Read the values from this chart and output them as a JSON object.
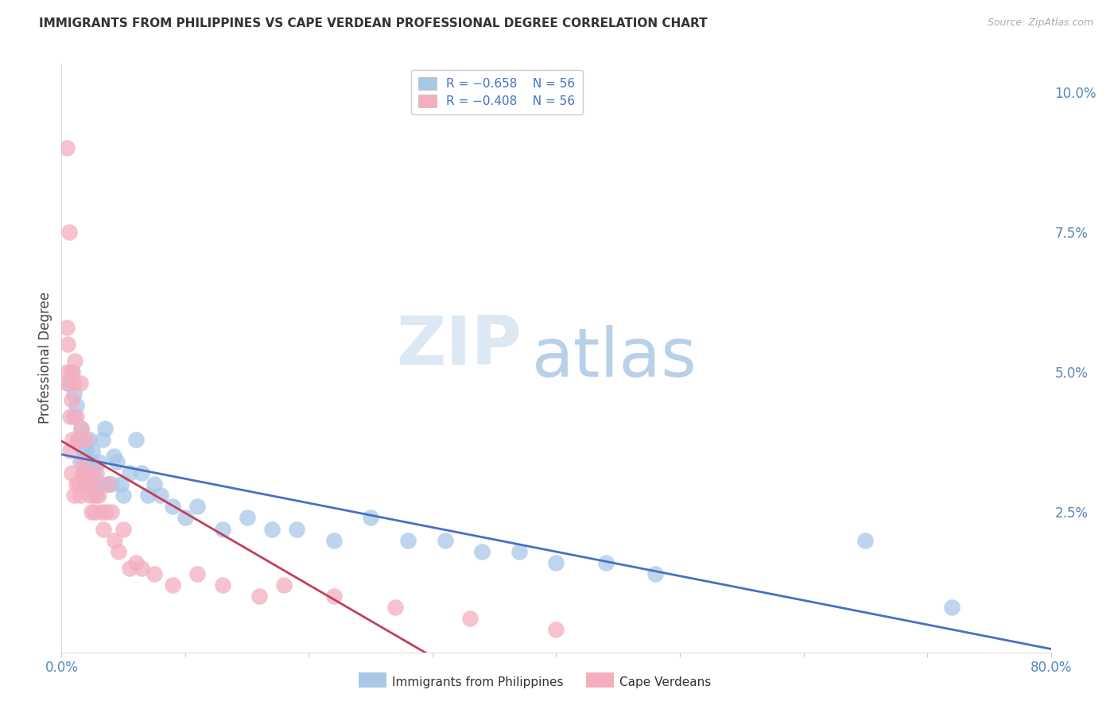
{
  "title": "IMMIGRANTS FROM PHILIPPINES VS CAPE VERDEAN PROFESSIONAL DEGREE CORRELATION CHART",
  "source": "Source: ZipAtlas.com",
  "ylabel": "Professional Degree",
  "legend_blue_label": "R = −0.658    N = 56",
  "legend_pink_label": "R = −0.408    N = 56",
  "blue_color": "#a8c8e8",
  "pink_color": "#f4aec0",
  "blue_line_color": "#4472c4",
  "pink_line_color": "#c0405a",
  "watermark_zip": "ZIP",
  "watermark_atlas": "atlas",
  "watermark_zip_color": "#dce8f4",
  "watermark_atlas_color": "#b8d0e8",
  "title_fontsize": 11,
  "source_fontsize": 9,
  "legend_fontsize": 11,
  "tick_color": "#5588bb",
  "blue_x": [
    0.005,
    0.008,
    0.01,
    0.01,
    0.012,
    0.013,
    0.015,
    0.015,
    0.016,
    0.017,
    0.018,
    0.018,
    0.02,
    0.02,
    0.021,
    0.022,
    0.023,
    0.024,
    0.025,
    0.026,
    0.027,
    0.028,
    0.03,
    0.031,
    0.033,
    0.035,
    0.038,
    0.04,
    0.042,
    0.045,
    0.048,
    0.05,
    0.055,
    0.06,
    0.065,
    0.07,
    0.075,
    0.08,
    0.09,
    0.1,
    0.11,
    0.13,
    0.15,
    0.17,
    0.19,
    0.22,
    0.25,
    0.28,
    0.31,
    0.34,
    0.37,
    0.4,
    0.44,
    0.48,
    0.65,
    0.72
  ],
  "blue_y": [
    0.048,
    0.05,
    0.046,
    0.042,
    0.044,
    0.038,
    0.038,
    0.034,
    0.04,
    0.036,
    0.038,
    0.032,
    0.036,
    0.03,
    0.034,
    0.038,
    0.03,
    0.034,
    0.036,
    0.032,
    0.03,
    0.028,
    0.034,
    0.03,
    0.038,
    0.04,
    0.03,
    0.03,
    0.035,
    0.034,
    0.03,
    0.028,
    0.032,
    0.038,
    0.032,
    0.028,
    0.03,
    0.028,
    0.026,
    0.024,
    0.026,
    0.022,
    0.024,
    0.022,
    0.022,
    0.02,
    0.024,
    0.02,
    0.02,
    0.018,
    0.018,
    0.016,
    0.016,
    0.014,
    0.02,
    0.008
  ],
  "pink_x": [
    0.004,
    0.004,
    0.004,
    0.005,
    0.005,
    0.006,
    0.007,
    0.007,
    0.008,
    0.008,
    0.009,
    0.009,
    0.01,
    0.01,
    0.011,
    0.012,
    0.012,
    0.013,
    0.014,
    0.015,
    0.015,
    0.016,
    0.017,
    0.018,
    0.019,
    0.02,
    0.021,
    0.022,
    0.023,
    0.024,
    0.025,
    0.026,
    0.027,
    0.028,
    0.03,
    0.032,
    0.034,
    0.036,
    0.038,
    0.04,
    0.043,
    0.046,
    0.05,
    0.055,
    0.06,
    0.065,
    0.075,
    0.09,
    0.11,
    0.13,
    0.16,
    0.18,
    0.22,
    0.27,
    0.33,
    0.4
  ],
  "pink_y": [
    0.09,
    0.058,
    0.05,
    0.055,
    0.048,
    0.075,
    0.042,
    0.036,
    0.045,
    0.032,
    0.05,
    0.038,
    0.048,
    0.028,
    0.052,
    0.042,
    0.03,
    0.038,
    0.03,
    0.048,
    0.028,
    0.04,
    0.032,
    0.034,
    0.03,
    0.038,
    0.032,
    0.03,
    0.028,
    0.025,
    0.03,
    0.028,
    0.025,
    0.032,
    0.028,
    0.025,
    0.022,
    0.025,
    0.03,
    0.025,
    0.02,
    0.018,
    0.022,
    0.015,
    0.016,
    0.015,
    0.014,
    0.012,
    0.014,
    0.012,
    0.01,
    0.012,
    0.01,
    0.008,
    0.006,
    0.004
  ]
}
